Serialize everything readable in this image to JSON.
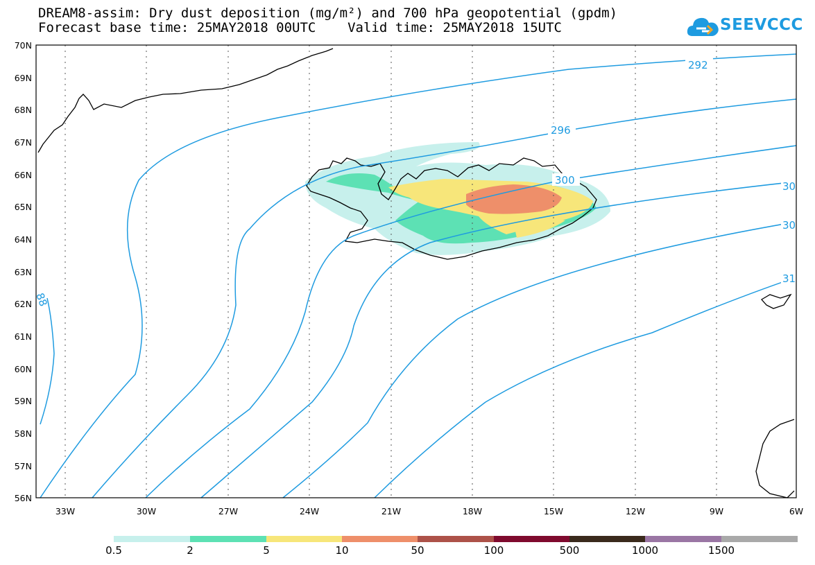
{
  "title": {
    "line1": "DREAM8-assim: Dry dust deposition (mg/m²) and 700 hPa geopotential (gpdm)",
    "line2": "Forecast base time: 25MAY2018 00UTC    Valid time: 25MAY2018 15UTC"
  },
  "logo": {
    "text": "SEEVCCC",
    "color": "#1e9be0"
  },
  "map": {
    "lat_labels": [
      "70N",
      "69N",
      "68N",
      "67N",
      "66N",
      "65N",
      "64N",
      "63N",
      "62N",
      "61N",
      "60N",
      "59N",
      "58N",
      "57N",
      "56N"
    ],
    "lon_labels": [
      "33W",
      "30W",
      "27W",
      "24W",
      "21W",
      "18W",
      "15W",
      "12W",
      "9W",
      "6W"
    ],
    "contour_color": "#1e9be0",
    "contour_labels": [
      "292",
      "296",
      "300",
      "30",
      "30",
      "31",
      "88"
    ],
    "regions": [
      "Iceland",
      "Greenland coast",
      "Faroe Islands",
      "Scotland coast"
    ]
  },
  "legend": {
    "labels": [
      "0.5",
      "2",
      "5",
      "10",
      "50",
      "100",
      "500",
      "1000",
      "1500"
    ],
    "colors": [
      "#c7f0ec",
      "#5de1b4",
      "#f7e67a",
      "#ee8f6a",
      "#ad5249",
      "#7f0a2e",
      "#3a2a1c",
      "#9a76a4",
      "#a9a9a9"
    ]
  }
}
